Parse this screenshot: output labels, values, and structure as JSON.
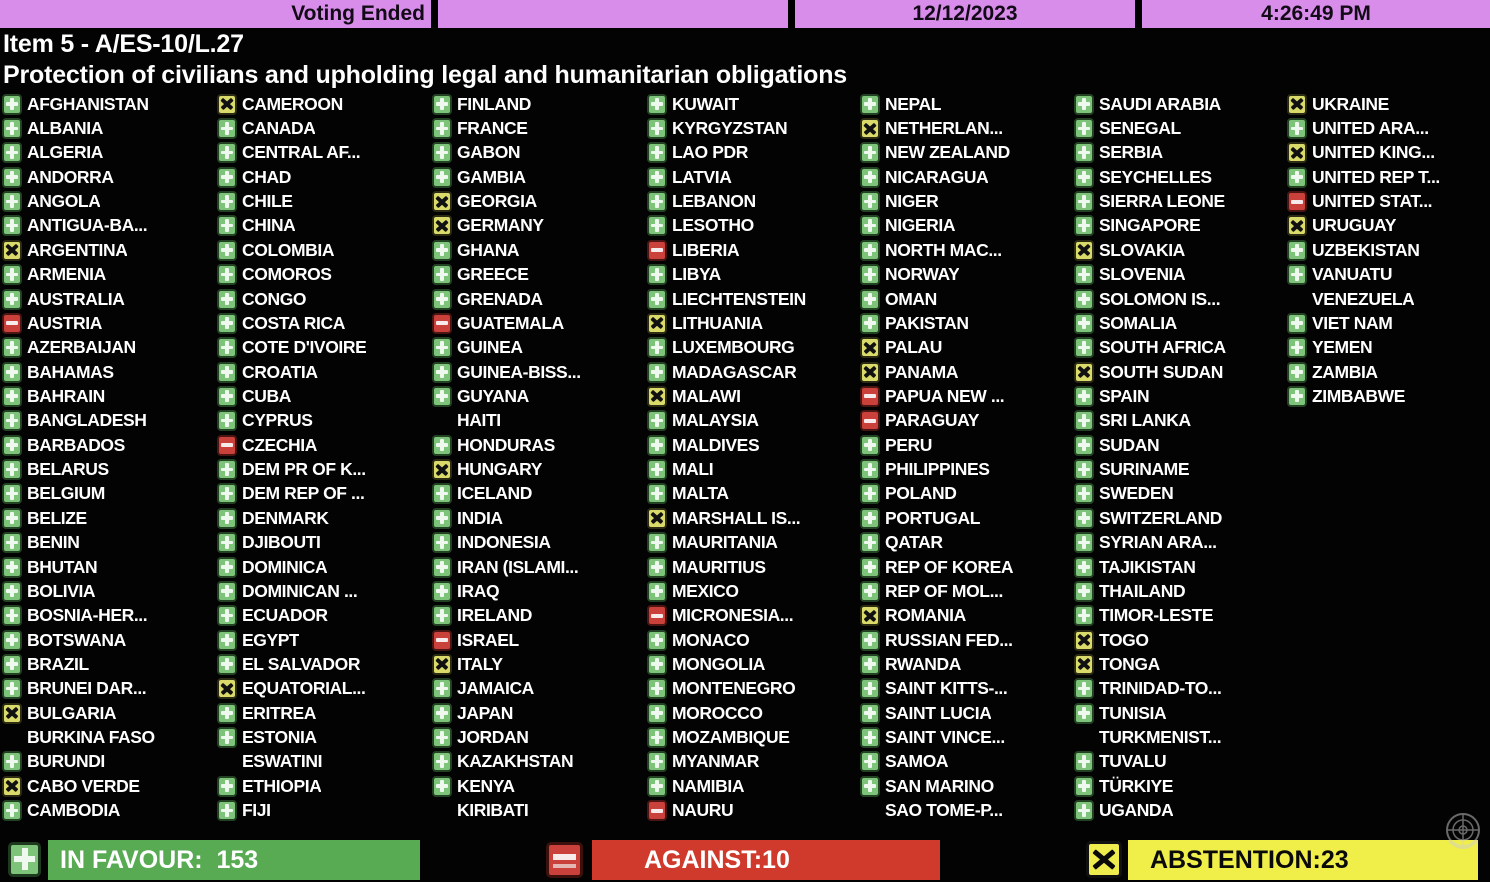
{
  "header": {
    "status": "Voting Ended",
    "date": "12/12/2023",
    "time": "4:26:49 PM"
  },
  "title": {
    "line1": "Item 5 - A/ES-10/L.27",
    "line2": "Protection of civilians and upholding legal and humanitarian obligations"
  },
  "vote_legend": {
    "Y": "in-favour",
    "N": "against",
    "A": "abstention",
    "X": "not-voting"
  },
  "colors": {
    "topbar": "#d88dea",
    "favour_green": "#7dc47a",
    "against_red": "#c9413a",
    "abstain_yellow": "#d9da69",
    "summary_green_box": "#58ab53",
    "summary_red_box": "#cf3a2c",
    "summary_yellow_box": "#f0ee49"
  },
  "summary": {
    "favour": "IN FAVOUR:  153",
    "against": "AGAINST:10",
    "abstain": "ABSTENTION:23",
    "favour_count": 153,
    "against_count": 10,
    "abstain_count": 23
  },
  "columns": [
    [
      {
        "n": "AFGHANISTAN",
        "v": "Y"
      },
      {
        "n": "ALBANIA",
        "v": "Y"
      },
      {
        "n": "ALGERIA",
        "v": "Y"
      },
      {
        "n": "ANDORRA",
        "v": "Y"
      },
      {
        "n": "ANGOLA",
        "v": "Y"
      },
      {
        "n": "ANTIGUA-BA...",
        "v": "Y"
      },
      {
        "n": "ARGENTINA",
        "v": "A"
      },
      {
        "n": "ARMENIA",
        "v": "Y"
      },
      {
        "n": "AUSTRALIA",
        "v": "Y"
      },
      {
        "n": "AUSTRIA",
        "v": "N"
      },
      {
        "n": "AZERBAIJAN",
        "v": "Y"
      },
      {
        "n": "BAHAMAS",
        "v": "Y"
      },
      {
        "n": "BAHRAIN",
        "v": "Y"
      },
      {
        "n": "BANGLADESH",
        "v": "Y"
      },
      {
        "n": "BARBADOS",
        "v": "Y"
      },
      {
        "n": "BELARUS",
        "v": "Y"
      },
      {
        "n": "BELGIUM",
        "v": "Y"
      },
      {
        "n": "BELIZE",
        "v": "Y"
      },
      {
        "n": "BENIN",
        "v": "Y"
      },
      {
        "n": "BHUTAN",
        "v": "Y"
      },
      {
        "n": "BOLIVIA",
        "v": "Y"
      },
      {
        "n": "BOSNIA-HER...",
        "v": "Y"
      },
      {
        "n": "BOTSWANA",
        "v": "Y"
      },
      {
        "n": "BRAZIL",
        "v": "Y"
      },
      {
        "n": "BRUNEI DAR...",
        "v": "Y"
      },
      {
        "n": "BULGARIA",
        "v": "A"
      },
      {
        "n": "BURKINA FASO",
        "v": "X"
      },
      {
        "n": "BURUNDI",
        "v": "Y"
      },
      {
        "n": "CABO VERDE",
        "v": "A"
      },
      {
        "n": "CAMBODIA",
        "v": "Y"
      }
    ],
    [
      {
        "n": "CAMEROON",
        "v": "A"
      },
      {
        "n": "CANADA",
        "v": "Y"
      },
      {
        "n": "CENTRAL AF...",
        "v": "Y"
      },
      {
        "n": "CHAD",
        "v": "Y"
      },
      {
        "n": "CHILE",
        "v": "Y"
      },
      {
        "n": "CHINA",
        "v": "Y"
      },
      {
        "n": "COLOMBIA",
        "v": "Y"
      },
      {
        "n": "COMOROS",
        "v": "Y"
      },
      {
        "n": "CONGO",
        "v": "Y"
      },
      {
        "n": "COSTA RICA",
        "v": "Y"
      },
      {
        "n": "COTE D'IVOIRE",
        "v": "Y"
      },
      {
        "n": "CROATIA",
        "v": "Y"
      },
      {
        "n": "CUBA",
        "v": "Y"
      },
      {
        "n": "CYPRUS",
        "v": "Y"
      },
      {
        "n": "CZECHIA",
        "v": "N"
      },
      {
        "n": "DEM PR OF K...",
        "v": "Y"
      },
      {
        "n": "DEM REP OF ...",
        "v": "Y"
      },
      {
        "n": "DENMARK",
        "v": "Y"
      },
      {
        "n": "DJIBOUTI",
        "v": "Y"
      },
      {
        "n": "DOMINICA",
        "v": "Y"
      },
      {
        "n": "DOMINICAN ...",
        "v": "Y"
      },
      {
        "n": "ECUADOR",
        "v": "Y"
      },
      {
        "n": "EGYPT",
        "v": "Y"
      },
      {
        "n": "EL SALVADOR",
        "v": "Y"
      },
      {
        "n": "EQUATORIAL...",
        "v": "A"
      },
      {
        "n": "ERITREA",
        "v": "Y"
      },
      {
        "n": "ESTONIA",
        "v": "Y"
      },
      {
        "n": "ESWATINI",
        "v": "X"
      },
      {
        "n": "ETHIOPIA",
        "v": "Y"
      },
      {
        "n": "FIJI",
        "v": "Y"
      }
    ],
    [
      {
        "n": "FINLAND",
        "v": "Y"
      },
      {
        "n": "FRANCE",
        "v": "Y"
      },
      {
        "n": "GABON",
        "v": "Y"
      },
      {
        "n": "GAMBIA",
        "v": "Y"
      },
      {
        "n": "GEORGIA",
        "v": "A"
      },
      {
        "n": "GERMANY",
        "v": "A"
      },
      {
        "n": "GHANA",
        "v": "Y"
      },
      {
        "n": "GREECE",
        "v": "Y"
      },
      {
        "n": "GRENADA",
        "v": "Y"
      },
      {
        "n": "GUATEMALA",
        "v": "N"
      },
      {
        "n": "GUINEA",
        "v": "Y"
      },
      {
        "n": "GUINEA-BISS...",
        "v": "Y"
      },
      {
        "n": "GUYANA",
        "v": "Y"
      },
      {
        "n": "HAITI",
        "v": "X"
      },
      {
        "n": "HONDURAS",
        "v": "Y"
      },
      {
        "n": "HUNGARY",
        "v": "A"
      },
      {
        "n": "ICELAND",
        "v": "Y"
      },
      {
        "n": "INDIA",
        "v": "Y"
      },
      {
        "n": "INDONESIA",
        "v": "Y"
      },
      {
        "n": "IRAN (ISLAMI...",
        "v": "Y"
      },
      {
        "n": "IRAQ",
        "v": "Y"
      },
      {
        "n": "IRELAND",
        "v": "Y"
      },
      {
        "n": "ISRAEL",
        "v": "N"
      },
      {
        "n": "ITALY",
        "v": "A"
      },
      {
        "n": "JAMAICA",
        "v": "Y"
      },
      {
        "n": "JAPAN",
        "v": "Y"
      },
      {
        "n": "JORDAN",
        "v": "Y"
      },
      {
        "n": "KAZAKHSTAN",
        "v": "Y"
      },
      {
        "n": "KENYA",
        "v": "Y"
      },
      {
        "n": "KIRIBATI",
        "v": "X"
      }
    ],
    [
      {
        "n": "KUWAIT",
        "v": "Y"
      },
      {
        "n": "KYRGYZSTAN",
        "v": "Y"
      },
      {
        "n": "LAO PDR",
        "v": "Y"
      },
      {
        "n": "LATVIA",
        "v": "Y"
      },
      {
        "n": "LEBANON",
        "v": "Y"
      },
      {
        "n": "LESOTHO",
        "v": "Y"
      },
      {
        "n": "LIBERIA",
        "v": "N"
      },
      {
        "n": "LIBYA",
        "v": "Y"
      },
      {
        "n": "LIECHTENSTEIN",
        "v": "Y"
      },
      {
        "n": "LITHUANIA",
        "v": "A"
      },
      {
        "n": "LUXEMBOURG",
        "v": "Y"
      },
      {
        "n": "MADAGASCAR",
        "v": "Y"
      },
      {
        "n": "MALAWI",
        "v": "A"
      },
      {
        "n": "MALAYSIA",
        "v": "Y"
      },
      {
        "n": "MALDIVES",
        "v": "Y"
      },
      {
        "n": "MALI",
        "v": "Y"
      },
      {
        "n": "MALTA",
        "v": "Y"
      },
      {
        "n": "MARSHALL IS...",
        "v": "A"
      },
      {
        "n": "MAURITANIA",
        "v": "Y"
      },
      {
        "n": "MAURITIUS",
        "v": "Y"
      },
      {
        "n": "MEXICO",
        "v": "Y"
      },
      {
        "n": "MICRONESIA...",
        "v": "N"
      },
      {
        "n": "MONACO",
        "v": "Y"
      },
      {
        "n": "MONGOLIA",
        "v": "Y"
      },
      {
        "n": "MONTENEGRO",
        "v": "Y"
      },
      {
        "n": "MOROCCO",
        "v": "Y"
      },
      {
        "n": "MOZAMBIQUE",
        "v": "Y"
      },
      {
        "n": "MYANMAR",
        "v": "Y"
      },
      {
        "n": "NAMIBIA",
        "v": "Y"
      },
      {
        "n": "NAURU",
        "v": "N"
      }
    ],
    [
      {
        "n": "NEPAL",
        "v": "Y"
      },
      {
        "n": "NETHERLAN...",
        "v": "A"
      },
      {
        "n": "NEW ZEALAND",
        "v": "Y"
      },
      {
        "n": "NICARAGUA",
        "v": "Y"
      },
      {
        "n": "NIGER",
        "v": "Y"
      },
      {
        "n": "NIGERIA",
        "v": "Y"
      },
      {
        "n": "NORTH MAC...",
        "v": "Y"
      },
      {
        "n": "NORWAY",
        "v": "Y"
      },
      {
        "n": "OMAN",
        "v": "Y"
      },
      {
        "n": "PAKISTAN",
        "v": "Y"
      },
      {
        "n": "PALAU",
        "v": "A"
      },
      {
        "n": "PANAMA",
        "v": "A"
      },
      {
        "n": "PAPUA NEW ...",
        "v": "N"
      },
      {
        "n": "PARAGUAY",
        "v": "N"
      },
      {
        "n": "PERU",
        "v": "Y"
      },
      {
        "n": "PHILIPPINES",
        "v": "Y"
      },
      {
        "n": "POLAND",
        "v": "Y"
      },
      {
        "n": "PORTUGAL",
        "v": "Y"
      },
      {
        "n": "QATAR",
        "v": "Y"
      },
      {
        "n": "REP OF KOREA",
        "v": "Y"
      },
      {
        "n": "REP OF MOL...",
        "v": "Y"
      },
      {
        "n": "ROMANIA",
        "v": "A"
      },
      {
        "n": "RUSSIAN FED...",
        "v": "Y"
      },
      {
        "n": "RWANDA",
        "v": "Y"
      },
      {
        "n": "SAINT KITTS-...",
        "v": "Y"
      },
      {
        "n": "SAINT LUCIA",
        "v": "Y"
      },
      {
        "n": "SAINT VINCE...",
        "v": "Y"
      },
      {
        "n": "SAMOA",
        "v": "Y"
      },
      {
        "n": "SAN MARINO",
        "v": "Y"
      },
      {
        "n": "SAO TOME-P...",
        "v": "X"
      }
    ],
    [
      {
        "n": "SAUDI ARABIA",
        "v": "Y"
      },
      {
        "n": "SENEGAL",
        "v": "Y"
      },
      {
        "n": "SERBIA",
        "v": "Y"
      },
      {
        "n": "SEYCHELLES",
        "v": "Y"
      },
      {
        "n": "SIERRA LEONE",
        "v": "Y"
      },
      {
        "n": "SINGAPORE",
        "v": "Y"
      },
      {
        "n": "SLOVAKIA",
        "v": "A"
      },
      {
        "n": "SLOVENIA",
        "v": "Y"
      },
      {
        "n": "SOLOMON IS...",
        "v": "Y"
      },
      {
        "n": "SOMALIA",
        "v": "Y"
      },
      {
        "n": "SOUTH AFRICA",
        "v": "Y"
      },
      {
        "n": "SOUTH SUDAN",
        "v": "A"
      },
      {
        "n": "SPAIN",
        "v": "Y"
      },
      {
        "n": "SRI LANKA",
        "v": "Y"
      },
      {
        "n": "SUDAN",
        "v": "Y"
      },
      {
        "n": "SURINAME",
        "v": "Y"
      },
      {
        "n": "SWEDEN",
        "v": "Y"
      },
      {
        "n": "SWITZERLAND",
        "v": "Y"
      },
      {
        "n": "SYRIAN ARA...",
        "v": "Y"
      },
      {
        "n": "TAJIKISTAN",
        "v": "Y"
      },
      {
        "n": "THAILAND",
        "v": "Y"
      },
      {
        "n": "TIMOR-LESTE",
        "v": "Y"
      },
      {
        "n": "TOGO",
        "v": "A"
      },
      {
        "n": "TONGA",
        "v": "A"
      },
      {
        "n": "TRINIDAD-TO...",
        "v": "Y"
      },
      {
        "n": "TUNISIA",
        "v": "Y"
      },
      {
        "n": "TURKMENIST...",
        "v": "X"
      },
      {
        "n": "TUVALU",
        "v": "Y"
      },
      {
        "n": "TÜRKIYE",
        "v": "Y"
      },
      {
        "n": "UGANDA",
        "v": "Y"
      }
    ],
    [
      {
        "n": "UKRAINE",
        "v": "A"
      },
      {
        "n": "UNITED ARA...",
        "v": "Y"
      },
      {
        "n": "UNITED KING...",
        "v": "A"
      },
      {
        "n": "UNITED REP T...",
        "v": "Y"
      },
      {
        "n": "UNITED STAT...",
        "v": "N"
      },
      {
        "n": "URUGUAY",
        "v": "A"
      },
      {
        "n": "UZBEKISTAN",
        "v": "Y"
      },
      {
        "n": "VANUATU",
        "v": "Y"
      },
      {
        "n": "VENEZUELA",
        "v": "X"
      },
      {
        "n": "VIET NAM",
        "v": "Y"
      },
      {
        "n": "YEMEN",
        "v": "Y"
      },
      {
        "n": "ZAMBIA",
        "v": "Y"
      },
      {
        "n": "ZIMBABWE",
        "v": "Y"
      }
    ]
  ]
}
